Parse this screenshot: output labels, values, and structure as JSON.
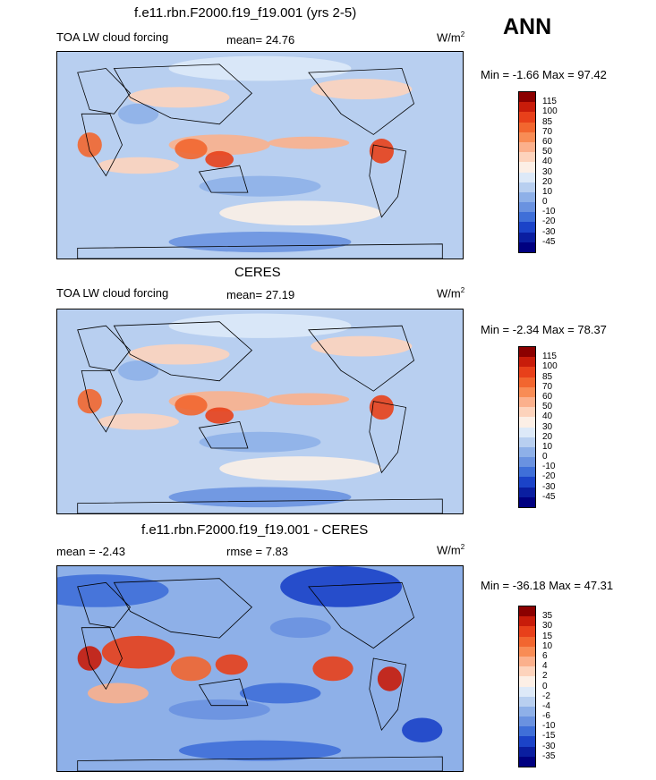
{
  "header": {
    "season": "ANN"
  },
  "panels": [
    {
      "title": "f.e11.rbn.F2000.f19_f19.001 (yrs 2-5)",
      "left_label": "TOA LW cloud forcing",
      "center_label": "mean=  24.76",
      "units": "W/m",
      "units_sup": "2",
      "minmax": "Min =  -1.66 Max =  97.42",
      "colorbar_labels": [
        "115",
        "100",
        "85",
        "70",
        "60",
        "50",
        "40",
        "30",
        "20",
        "10",
        "0",
        "-10",
        "-20",
        "-30",
        "-45"
      ],
      "colorbar_colors": [
        "#8b0000",
        "#c81c0a",
        "#e8401a",
        "#f2662f",
        "#f88c55",
        "#fbb08c",
        "#fdd3bc",
        "#fcefe6",
        "#dde9f8",
        "#b8cff0",
        "#8eb0e8",
        "#6a92e0",
        "#3f6fd8",
        "#1b43c8",
        "#0a1ea0",
        "#000080"
      ]
    },
    {
      "title": "CERES",
      "left_label": "TOA LW cloud forcing",
      "center_label": "mean=  27.19",
      "units": "W/m",
      "units_sup": "2",
      "minmax": "Min =  -2.34 Max =  78.37",
      "colorbar_labels": [
        "115",
        "100",
        "85",
        "70",
        "60",
        "50",
        "40",
        "30",
        "20",
        "10",
        "0",
        "-10",
        "-20",
        "-30",
        "-45"
      ],
      "colorbar_colors": [
        "#8b0000",
        "#c81c0a",
        "#e8401a",
        "#f2662f",
        "#f88c55",
        "#fbb08c",
        "#fdd3bc",
        "#fcefe6",
        "#dde9f8",
        "#b8cff0",
        "#8eb0e8",
        "#6a92e0",
        "#3f6fd8",
        "#1b43c8",
        "#0a1ea0",
        "#000080"
      ]
    },
    {
      "title": "f.e11.rbn.F2000.f19_f19.001 - CERES",
      "left_label": "mean =  -2.43",
      "center_label": "rmse =   7.83",
      "units": "W/m",
      "units_sup": "2",
      "minmax": "Min = -36.18 Max =  47.31",
      "colorbar_labels": [
        "35",
        "30",
        "15",
        "10",
        "6",
        "4",
        "2",
        "0",
        "-2",
        "-4",
        "-6",
        "-10",
        "-15",
        "-30",
        "-35"
      ],
      "colorbar_colors": [
        "#8b0000",
        "#c81c0a",
        "#e8401a",
        "#f2662f",
        "#f88c55",
        "#fbb08c",
        "#fdd3bc",
        "#fcefe6",
        "#dde9f8",
        "#b8cff0",
        "#8eb0e8",
        "#6a92e0",
        "#3f6fd8",
        "#1b43c8",
        "#0a1ea0",
        "#000080"
      ]
    }
  ],
  "chart_data": [
    {
      "type": "heatmap",
      "title": "f.e11.rbn.F2000.f19_f19.001 (yrs 2-5)",
      "variable": "TOA LW cloud forcing",
      "units": "W/m2",
      "mean": 24.76,
      "min": -1.66,
      "max": 97.42,
      "contour_levels": [
        -45,
        -30,
        -20,
        -10,
        0,
        10,
        20,
        30,
        40,
        50,
        60,
        70,
        85,
        100,
        115
      ]
    },
    {
      "type": "heatmap",
      "title": "CERES",
      "variable": "TOA LW cloud forcing",
      "units": "W/m2",
      "mean": 27.19,
      "min": -2.34,
      "max": 78.37,
      "contour_levels": [
        -45,
        -30,
        -20,
        -10,
        0,
        10,
        20,
        30,
        40,
        50,
        60,
        70,
        85,
        100,
        115
      ]
    },
    {
      "type": "heatmap",
      "title": "f.e11.rbn.F2000.f19_f19.001 - CERES",
      "units": "W/m2",
      "mean": -2.43,
      "rmse": 7.83,
      "min": -36.18,
      "max": 47.31,
      "contour_levels": [
        -35,
        -30,
        -15,
        -10,
        -6,
        -4,
        -2,
        0,
        2,
        4,
        6,
        10,
        15,
        30,
        35
      ]
    }
  ]
}
